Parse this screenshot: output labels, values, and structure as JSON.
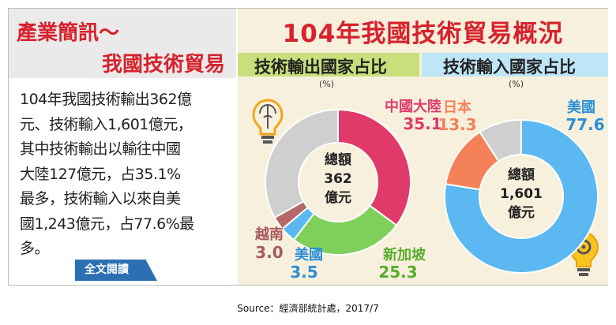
{
  "left": {
    "title_line1": "產業簡訊～",
    "title_line2": "我國技術貿易",
    "summary_lines": [
      "104年我國技術輸出362億",
      "元、技術輸入1,601億元，",
      "其中技術輸出以輸往中國",
      "大陸127億元，占35.1%",
      "最多，技術輸入以來自美",
      "國1,243億元，占77.6%最",
      "多。"
    ],
    "button_label": "全文閱讀"
  },
  "right": {
    "title": "104年我國技術貿易概況",
    "export_heading": "技術輸出國家占比",
    "import_heading": "技術輸入國家占比",
    "unit": "(%)"
  },
  "footer": "Source：經濟部統計處，2017/7",
  "colors": {
    "red": "#e03a6a",
    "green": "#7fd05a",
    "blue": "#5cb8f0",
    "brown": "#b5676a",
    "gray": "#cfcfcf",
    "orange": "#f58158"
  },
  "chart_data": [
    {
      "type": "pie",
      "title": "技術輸出國家占比",
      "unit": "(%)",
      "center_label": [
        "總額",
        "362",
        "億元"
      ],
      "slices": [
        {
          "label": "中國大陸",
          "value": 35.1,
          "color": "#e03a6a"
        },
        {
          "label": "新加坡",
          "value": 25.3,
          "color": "#7fd05a"
        },
        {
          "label": "美國",
          "value": 3.5,
          "color": "#5cb8f0"
        },
        {
          "label": "越南",
          "value": 3.0,
          "color": "#b5676a"
        },
        {
          "label": "",
          "value": 33.1,
          "color": "#cfcfcf"
        }
      ]
    },
    {
      "type": "pie",
      "title": "技術輸入國家占比",
      "unit": "(%)",
      "center_label": [
        "總額",
        "1,601",
        "億元"
      ],
      "slices": [
        {
          "label": "美國",
          "value": 77.6,
          "color": "#5cb8f0"
        },
        {
          "label": "日本",
          "value": 13.3,
          "color": "#f58158"
        },
        {
          "label": "",
          "value": 9.1,
          "color": "#cfcfcf"
        }
      ]
    }
  ]
}
